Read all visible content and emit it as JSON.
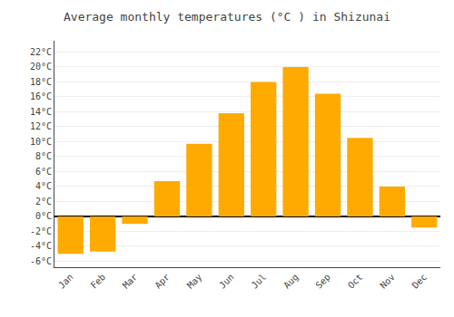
{
  "chart_data": {
    "type": "bar",
    "title": "Average monthly temperatures (°C ) in Shizunai",
    "categories": [
      "Jan",
      "Feb",
      "Mar",
      "Apr",
      "May",
      "Jun",
      "Jul",
      "Aug",
      "Sep",
      "Oct",
      "Nov",
      "Dec"
    ],
    "values": [
      -5.0,
      -4.7,
      -1.0,
      4.7,
      9.7,
      13.8,
      18.0,
      20.0,
      16.4,
      10.5,
      4.0,
      -1.5
    ],
    "color": "#FFAA00",
    "ylim": [
      -6.8,
      23.5
    ],
    "yticks": [
      {
        "value": -6,
        "label": "-6°C"
      },
      {
        "value": -4,
        "label": "-4°C"
      },
      {
        "value": -2,
        "label": "-2°C"
      },
      {
        "value": 0,
        "label": "0°C"
      },
      {
        "value": 2,
        "label": "2°C"
      },
      {
        "value": 4,
        "label": "4°C"
      },
      {
        "value": 6,
        "label": "6°C"
      },
      {
        "value": 8,
        "label": "8°C"
      },
      {
        "value": 10,
        "label": "10°C"
      },
      {
        "value": 12,
        "label": "12°C"
      },
      {
        "value": 14,
        "label": "14°C"
      },
      {
        "value": 16,
        "label": "16°C"
      },
      {
        "value": 18,
        "label": "18°C"
      },
      {
        "value": 20,
        "label": "20°C"
      },
      {
        "value": 22,
        "label": "22°C"
      }
    ],
    "grid": true
  }
}
